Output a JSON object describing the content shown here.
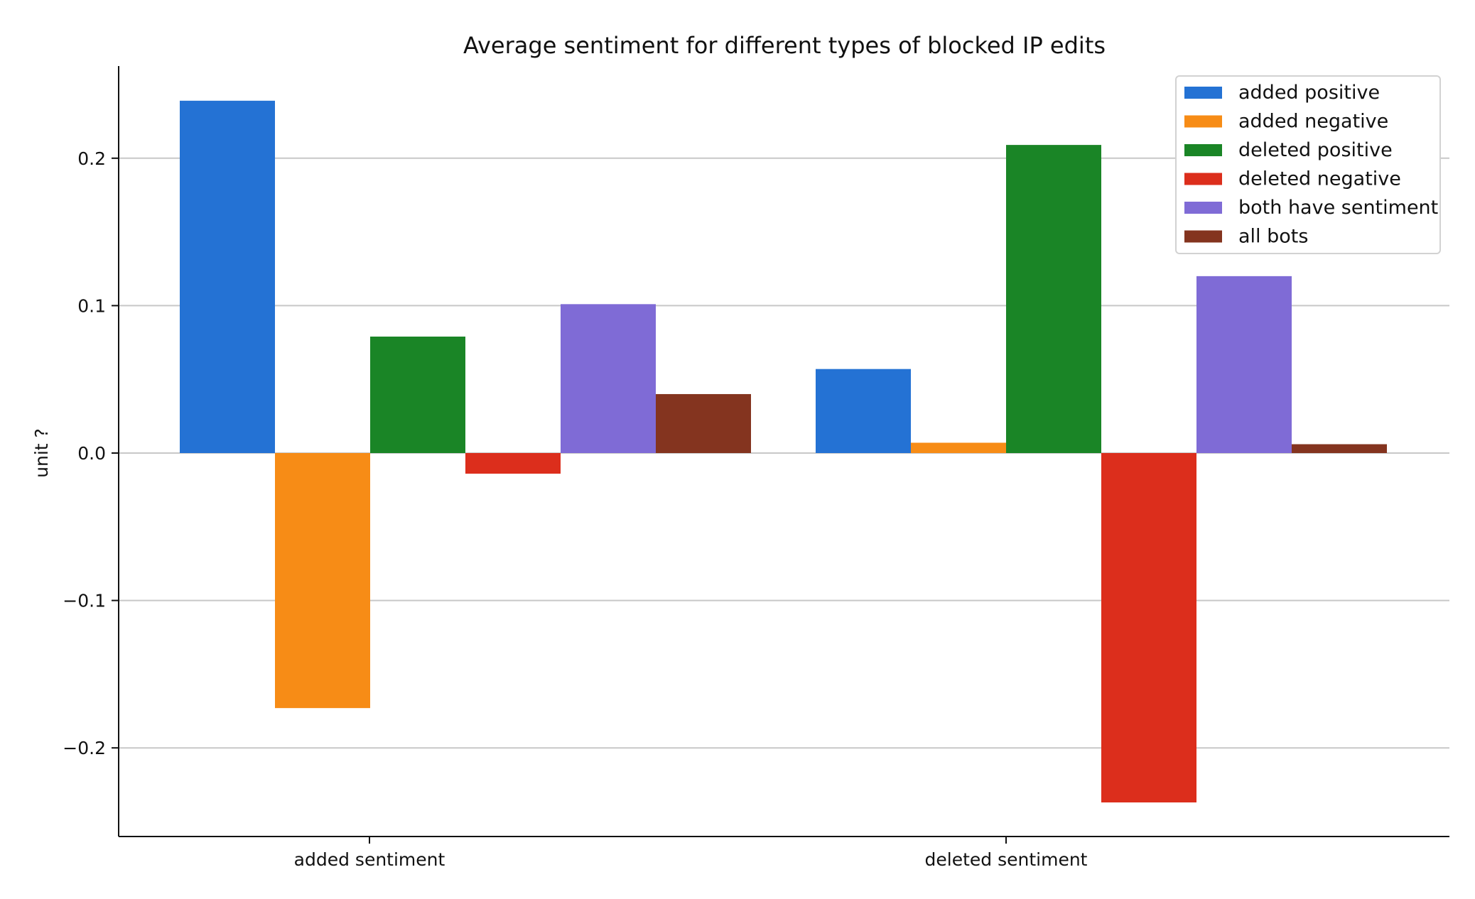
{
  "chart_data": {
    "type": "bar",
    "title": "Average sentiment for different types of blocked IP edits",
    "xlabel": "",
    "ylabel": "unit ?",
    "categories": [
      "added sentiment",
      "deleted sentiment"
    ],
    "series": [
      {
        "name": "added positive",
        "color": "#2472d4",
        "values": [
          0.239,
          0.057
        ]
      },
      {
        "name": "added negative",
        "color": "#f78c16",
        "values": [
          -0.173,
          0.007
        ]
      },
      {
        "name": "deleted positive",
        "color": "#1a8526",
        "values": [
          0.079,
          0.209
        ]
      },
      {
        "name": "deleted negative",
        "color": "#dc2e1c",
        "values": [
          -0.014,
          -0.237
        ]
      },
      {
        "name": "both have sentiment",
        "color": "#7f6bd6",
        "values": [
          0.101,
          0.12
        ]
      },
      {
        "name": "all bots",
        "color": "#84341f",
        "values": [
          0.04,
          0.006
        ]
      }
    ],
    "ylim": [
      -0.26,
      0.263
    ],
    "yticks": [
      {
        "value": -0.2,
        "label": "−0.2"
      },
      {
        "value": -0.1,
        "label": "−0.1"
      },
      {
        "value": 0.0,
        "label": "0.0"
      },
      {
        "value": 0.1,
        "label": "0.1"
      },
      {
        "value": 0.2,
        "label": "0.2"
      }
    ],
    "grid": "horizontal",
    "legend_position": "top-right"
  }
}
